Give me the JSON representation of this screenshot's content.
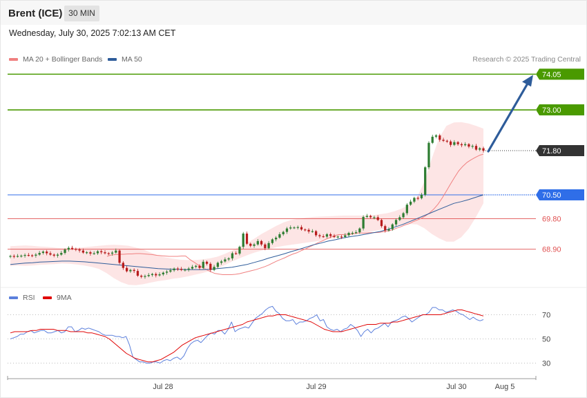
{
  "header": {
    "title": "Brent (ICE)",
    "timeframe": "30 MIN",
    "datetime": "Wednesday, July 30, 2025 7:02:13 AM CET"
  },
  "legend": {
    "ma20": "MA 20 + Bollinger Bands",
    "ma50": "MA 50",
    "rsi": "RSI",
    "rsi_ma": "9MA",
    "credit": "Research © 2025 Trading Central"
  },
  "colors": {
    "bollinger": "#f08080",
    "ma50": "#2e5c9a",
    "target": "#4a9a00",
    "support": "#e05050",
    "pivot": "#2f6ee8",
    "last": "#333333",
    "candle_up": "#2e7d32",
    "candle_down": "#b71c1c",
    "rsi": "#5b7fdc",
    "rsi_ma": "#e00000",
    "arrow": "#2e5c9a"
  },
  "chart_data": [
    {
      "type": "candlestick",
      "title": "Brent (ICE)",
      "timeframe": "30 MIN",
      "x_ticks": [
        "Jul 28",
        "Jul 29",
        "Jul 30",
        "Aug 5"
      ],
      "ylim": [
        68.1,
        74.2
      ],
      "levels": [
        {
          "label": "74.05",
          "value": 74.05,
          "kind": "target"
        },
        {
          "label": "73.00",
          "value": 73.0,
          "kind": "target"
        },
        {
          "label": "71.80",
          "value": 71.8,
          "kind": "last"
        },
        {
          "label": "70.50",
          "value": 70.5,
          "kind": "pivot"
        },
        {
          "label": "69.80",
          "value": 69.8,
          "kind": "support"
        },
        {
          "label": "68.90",
          "value": 68.9,
          "kind": "support"
        }
      ],
      "close": [
        68.7,
        68.69,
        68.7,
        68.71,
        68.73,
        68.72,
        68.71,
        68.74,
        68.79,
        68.83,
        68.78,
        68.74,
        68.71,
        68.74,
        68.79,
        68.89,
        68.94,
        68.91,
        68.89,
        68.86,
        68.8,
        68.81,
        68.77,
        68.78,
        68.84,
        68.81,
        68.78,
        68.77,
        68.8,
        68.86,
        68.5,
        68.35,
        68.25,
        68.29,
        68.26,
        68.12,
        68.09,
        68.11,
        68.14,
        68.17,
        68.13,
        68.16,
        68.21,
        68.24,
        68.28,
        68.33,
        68.32,
        68.29,
        68.3,
        68.33,
        68.38,
        68.41,
        68.35,
        68.53,
        68.47,
        68.29,
        68.38,
        68.5,
        68.54,
        68.6,
        68.63,
        68.78,
        68.77,
        68.97,
        69.36,
        69.06,
        69.0,
        69.04,
        69.14,
        69.04,
        68.93,
        69.08,
        69.19,
        69.24,
        69.34,
        69.41,
        69.51,
        69.54,
        69.54,
        69.55,
        69.48,
        69.47,
        69.42,
        69.43,
        69.31,
        69.28,
        69.27,
        69.34,
        69.29,
        69.26,
        69.27,
        69.26,
        69.31,
        69.38,
        69.38,
        69.4,
        69.51,
        69.85,
        69.88,
        69.84,
        69.84,
        69.76,
        69.58,
        69.45,
        69.49,
        69.63,
        69.76,
        69.84,
        69.96,
        70.21,
        70.3,
        70.41,
        70.4,
        70.5,
        71.31,
        72.03,
        72.21,
        72.25,
        72.12,
        72.09,
        72.07,
        71.97,
        72.05,
        71.99,
        71.96,
        71.99,
        71.92,
        71.94,
        71.83,
        71.87,
        71.8
      ],
      "ma20": [
        68.69,
        68.73,
        68.74,
        68.75,
        68.75,
        68.76,
        68.76,
        68.77,
        68.77,
        68.76,
        68.75,
        68.74,
        68.72,
        68.71,
        68.7,
        68.69,
        68.69,
        68.69,
        68.7,
        68.7,
        68.6,
        68.52,
        68.44,
        68.37,
        68.3,
        68.24,
        68.19,
        68.17,
        68.15,
        68.15,
        68.15,
        68.16,
        68.18,
        68.21,
        68.24,
        68.27,
        68.3,
        68.34,
        68.38,
        68.43,
        68.49,
        68.55,
        68.6,
        68.65,
        68.71,
        68.76,
        68.8,
        68.86,
        68.91,
        68.97,
        69.03,
        69.09,
        69.14,
        69.2,
        69.25,
        69.3,
        69.33,
        69.33,
        69.34,
        69.34,
        69.36,
        69.38,
        69.37,
        69.38,
        69.39,
        69.39,
        69.4,
        69.42,
        69.44,
        69.47,
        69.52,
        69.56,
        69.61,
        69.65,
        69.71,
        69.76,
        69.81,
        69.88,
        69.97,
        70.08,
        70.22,
        70.4,
        70.6,
        70.81,
        71.01,
        71.2,
        71.34,
        71.45,
        71.53,
        71.6,
        71.66,
        71.7
      ],
      "ma50": [
        68.45,
        68.47,
        68.49,
        68.5,
        68.52,
        68.53,
        68.54,
        68.55,
        68.55,
        68.54,
        68.53,
        68.51,
        68.49,
        68.47,
        68.45,
        68.43,
        68.41,
        68.39,
        68.37,
        68.35,
        68.33,
        68.32,
        68.31,
        68.31,
        68.3,
        68.3,
        68.3,
        68.31,
        68.33,
        68.35,
        68.37,
        68.41,
        68.45,
        68.51,
        68.57,
        68.64,
        68.7,
        68.76,
        68.83,
        68.89,
        68.96,
        69.03,
        69.08,
        69.14,
        69.18,
        69.23,
        69.27,
        69.3,
        69.34,
        69.38,
        69.42,
        69.48,
        69.55,
        69.62,
        69.71,
        69.8,
        69.89,
        69.98,
        70.07,
        70.16,
        70.25,
        70.3,
        70.36,
        70.43,
        70.5
      ],
      "bb_upper": [
        68.99,
        69.0,
        69.01,
        69.0,
        68.98,
        68.97,
        68.95,
        68.93,
        68.93,
        68.94,
        68.96,
        68.98,
        69.0,
        69.02,
        69.03,
        69.02,
        69.0,
        68.95,
        68.89,
        68.8,
        68.72,
        68.66,
        68.62,
        68.59,
        68.58,
        68.58,
        68.6,
        68.63,
        68.68,
        68.76,
        68.86,
        68.97,
        69.08,
        69.21,
        69.35,
        69.47,
        69.59,
        69.69,
        69.76,
        69.8,
        69.83,
        69.85,
        69.86,
        69.87,
        69.88,
        69.89,
        69.89,
        69.89,
        69.89,
        69.9,
        69.93,
        69.96,
        70.02,
        70.1,
        70.22,
        70.42,
        70.88,
        71.56,
        72.17,
        72.53,
        72.63,
        72.64,
        72.6,
        72.53,
        72.45
      ],
      "bb_lower": [
        68.4,
        68.42,
        68.41,
        68.42,
        68.44,
        68.45,
        68.46,
        68.48,
        68.47,
        68.45,
        68.42,
        68.38,
        68.32,
        68.2,
        68.05,
        67.93,
        67.85,
        67.84,
        67.87,
        67.92,
        67.96,
        67.99,
        68.03,
        68.06,
        68.1,
        68.15,
        68.2,
        68.26,
        68.34,
        68.43,
        68.54,
        68.63,
        68.72,
        68.8,
        68.86,
        68.91,
        68.96,
        69.0,
        69.03,
        69.06,
        69.09,
        69.12,
        69.15,
        69.19,
        69.23,
        69.27,
        69.31,
        69.35,
        69.39,
        69.43,
        69.47,
        69.52,
        69.57,
        69.61,
        69.64,
        69.63,
        69.52,
        69.35,
        69.22,
        69.12,
        69.12,
        69.25,
        69.5,
        69.85,
        70.25
      ],
      "target_arrow": {
        "from": 71.8,
        "to": 74.05
      }
    },
    {
      "type": "line",
      "title": "RSI",
      "ylim": [
        20,
        80
      ],
      "y_ticks": [
        70,
        50,
        30
      ],
      "series": [
        {
          "name": "RSI",
          "values": [
            50,
            51,
            52,
            54,
            54,
            56,
            57,
            55,
            56,
            57,
            57,
            55,
            55,
            56,
            57,
            55,
            56,
            60,
            60,
            56,
            57,
            59,
            58,
            59,
            58,
            57,
            56,
            54,
            53,
            53,
            53,
            52,
            52,
            51,
            52,
            45,
            35,
            33,
            31,
            31,
            30,
            30,
            31,
            31,
            30,
            32,
            33,
            32,
            34,
            35,
            33,
            36,
            42,
            46,
            48,
            49,
            47,
            50,
            53,
            55,
            54,
            57,
            57,
            54,
            58,
            64,
            56,
            58,
            59,
            60,
            59,
            63,
            67,
            69,
            71,
            74,
            76,
            77,
            73,
            71,
            67,
            65,
            65,
            66,
            62,
            64,
            64,
            65,
            67,
            68,
            70,
            65,
            66,
            60,
            58,
            57,
            58,
            56,
            58,
            59,
            62,
            60,
            57,
            52,
            56,
            58,
            55,
            58,
            59,
            61,
            63,
            60,
            64,
            65,
            66,
            68,
            69,
            67,
            64,
            66,
            68,
            70,
            70,
            72,
            76,
            76,
            74,
            74,
            72,
            73,
            74,
            73,
            71,
            70,
            68,
            66,
            68,
            66,
            65,
            66
          ]
        },
        {
          "name": "9MA",
          "values": [
            55,
            56,
            56,
            56,
            56,
            57,
            57,
            58,
            58,
            58,
            58,
            57,
            57,
            57,
            56,
            56,
            56,
            56,
            55,
            55,
            54,
            53,
            52,
            50,
            47,
            44,
            41,
            38,
            36,
            34,
            33,
            32,
            31,
            31,
            32,
            33,
            35,
            37,
            39,
            42,
            45,
            47,
            49,
            51,
            52,
            53,
            54,
            55,
            56,
            57,
            58,
            59,
            60,
            61,
            62,
            64,
            65,
            66,
            67,
            68,
            69,
            69,
            70,
            70,
            70,
            69,
            68,
            67,
            66,
            65,
            64,
            62,
            60,
            58,
            57,
            56,
            56,
            56,
            57,
            58,
            59,
            60,
            61,
            62,
            62,
            62,
            63,
            63,
            63,
            64,
            64,
            65,
            66,
            67,
            68,
            69,
            70,
            70,
            70,
            70,
            70,
            71,
            72,
            73,
            74,
            74,
            73,
            72,
            71,
            70,
            69
          ]
        }
      ]
    }
  ]
}
